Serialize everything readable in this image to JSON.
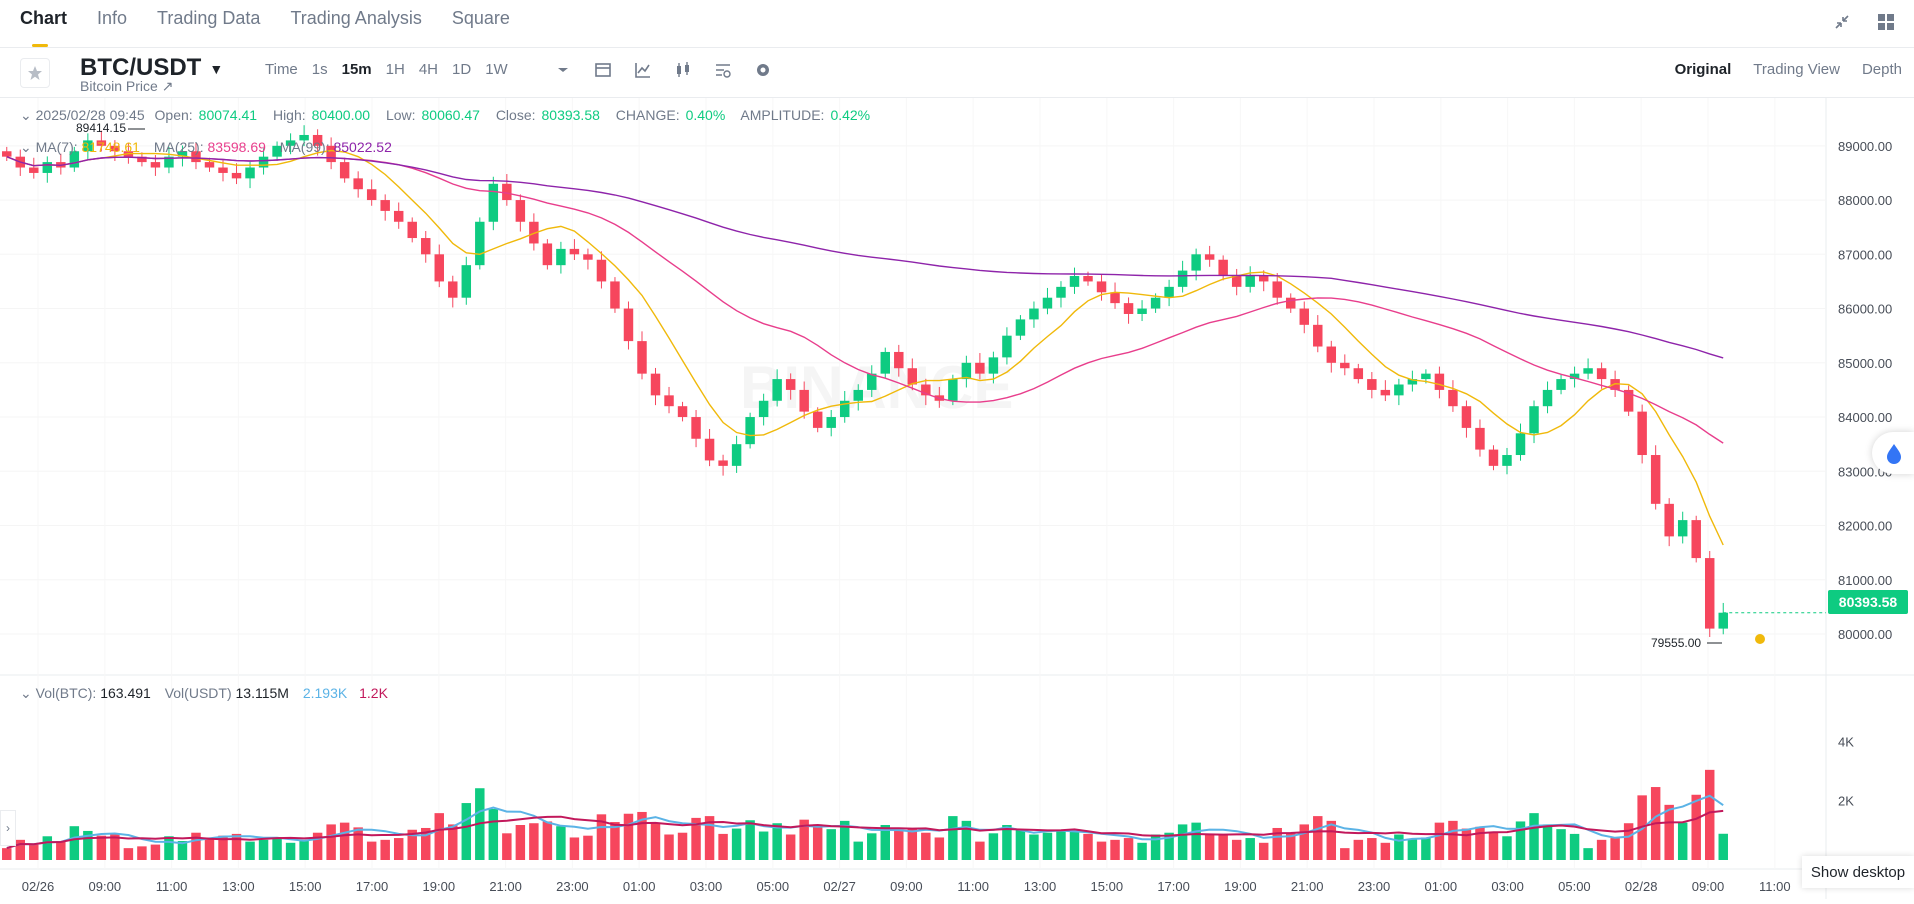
{
  "tabs": [
    "Chart",
    "Info",
    "Trading Data",
    "Trading Analysis",
    "Square"
  ],
  "active_tab": "Chart",
  "toolbar": {
    "symbol": "BTC/USDT",
    "subtitle": "Bitcoin Price ↗",
    "intervals": [
      "Time",
      "1s",
      "15m",
      "1H",
      "4H",
      "1D",
      "1W"
    ],
    "selected_interval": "15m",
    "views": [
      "Original",
      "Trading View",
      "Depth"
    ],
    "selected_view": "Original"
  },
  "ohlc": {
    "date": "2025/02/28 09:45",
    "open_label": "Open:",
    "open": "80074.41",
    "high_label": "High:",
    "high": "80400.00",
    "low_label": "Low:",
    "low": "80060.47",
    "close_label": "Close:",
    "close": "80393.58",
    "change_label": "CHANGE:",
    "change": "0.40%",
    "amplitude_label": "AMPLITUDE:",
    "amplitude": "0.42%"
  },
  "ma": {
    "ma7_label": "MA(7):",
    "ma7": "81748.61",
    "ma25_label": "MA(25):",
    "ma25": "83598.69",
    "ma99_label": "MA(99):",
    "ma99": "85022.52"
  },
  "vol": {
    "btc_label": "Vol(BTC):",
    "btc": "163.491",
    "usdt_label": "Vol(USDT)",
    "usdt": "13.115M",
    "ma_a": "2.193K",
    "ma_b": "1.2K"
  },
  "markers": {
    "high": "89414.15",
    "low": "79555.00"
  },
  "last_price": "80393.58",
  "show_desktop": "Show desktop",
  "colors": {
    "up": "#0ecb81",
    "down": "#f6465d",
    "ma7": "#f0b90b",
    "ma25": "#e83e8c",
    "ma99": "#8e24aa",
    "vol_ma1": "#5bb3e6",
    "vol_ma2": "#c2185b"
  },
  "chart_data": {
    "type": "candlestick",
    "price_axis": {
      "ticks": [
        "89000.00",
        "88000.00",
        "87000.00",
        "86000.00",
        "85000.00",
        "84000.00",
        "83000.00",
        "82000.00",
        "81000.00",
        "80000.00"
      ]
    },
    "volume_axis": {
      "ticks": [
        "4K",
        "2K"
      ]
    },
    "x_ticks": [
      "02/26",
      "09:00",
      "11:00",
      "13:00",
      "15:00",
      "17:00",
      "19:00",
      "21:00",
      "23:00",
      "01:00",
      "03:00",
      "05:00",
      "02/27",
      "09:00",
      "11:00",
      "13:00",
      "15:00",
      "17:00",
      "19:00",
      "21:00",
      "23:00",
      "01:00",
      "03:00",
      "05:00",
      "02/28",
      "09:00",
      "11:00"
    ],
    "close_series": [
      88800,
      88600,
      88500,
      88700,
      88600,
      88900,
      89100,
      89000,
      88900,
      88800,
      88700,
      88600,
      88800,
      88900,
      88700,
      88600,
      88500,
      88400,
      88600,
      88800,
      89000,
      89100,
      89200,
      89000,
      88700,
      88400,
      88200,
      88000,
      87800,
      87600,
      87300,
      87000,
      86500,
      86200,
      86800,
      87600,
      88300,
      88000,
      87600,
      87200,
      86800,
      87100,
      87000,
      86900,
      86500,
      86000,
      85400,
      84800,
      84400,
      84200,
      84000,
      83600,
      83200,
      83100,
      83500,
      84000,
      84300,
      84700,
      84500,
      84100,
      83800,
      84000,
      84300,
      84500,
      84800,
      85200,
      84900,
      84600,
      84400,
      84300,
      84700,
      85000,
      84800,
      85100,
      85500,
      85800,
      86000,
      86200,
      86400,
      86600,
      86500,
      86300,
      86100,
      85900,
      86000,
      86200,
      86400,
      86700,
      87000,
      86900,
      86600,
      86400,
      86600,
      86500,
      86200,
      86000,
      85700,
      85300,
      85000,
      84900,
      84700,
      84500,
      84400,
      84600,
      84700,
      84800,
      84500,
      84200,
      83800,
      83400,
      83100,
      83300,
      83700,
      84200,
      84500,
      84700,
      84800,
      84900,
      84700,
      84500,
      84100,
      83300,
      82400,
      81800,
      82100,
      81400,
      80100,
      80393
    ]
  }
}
